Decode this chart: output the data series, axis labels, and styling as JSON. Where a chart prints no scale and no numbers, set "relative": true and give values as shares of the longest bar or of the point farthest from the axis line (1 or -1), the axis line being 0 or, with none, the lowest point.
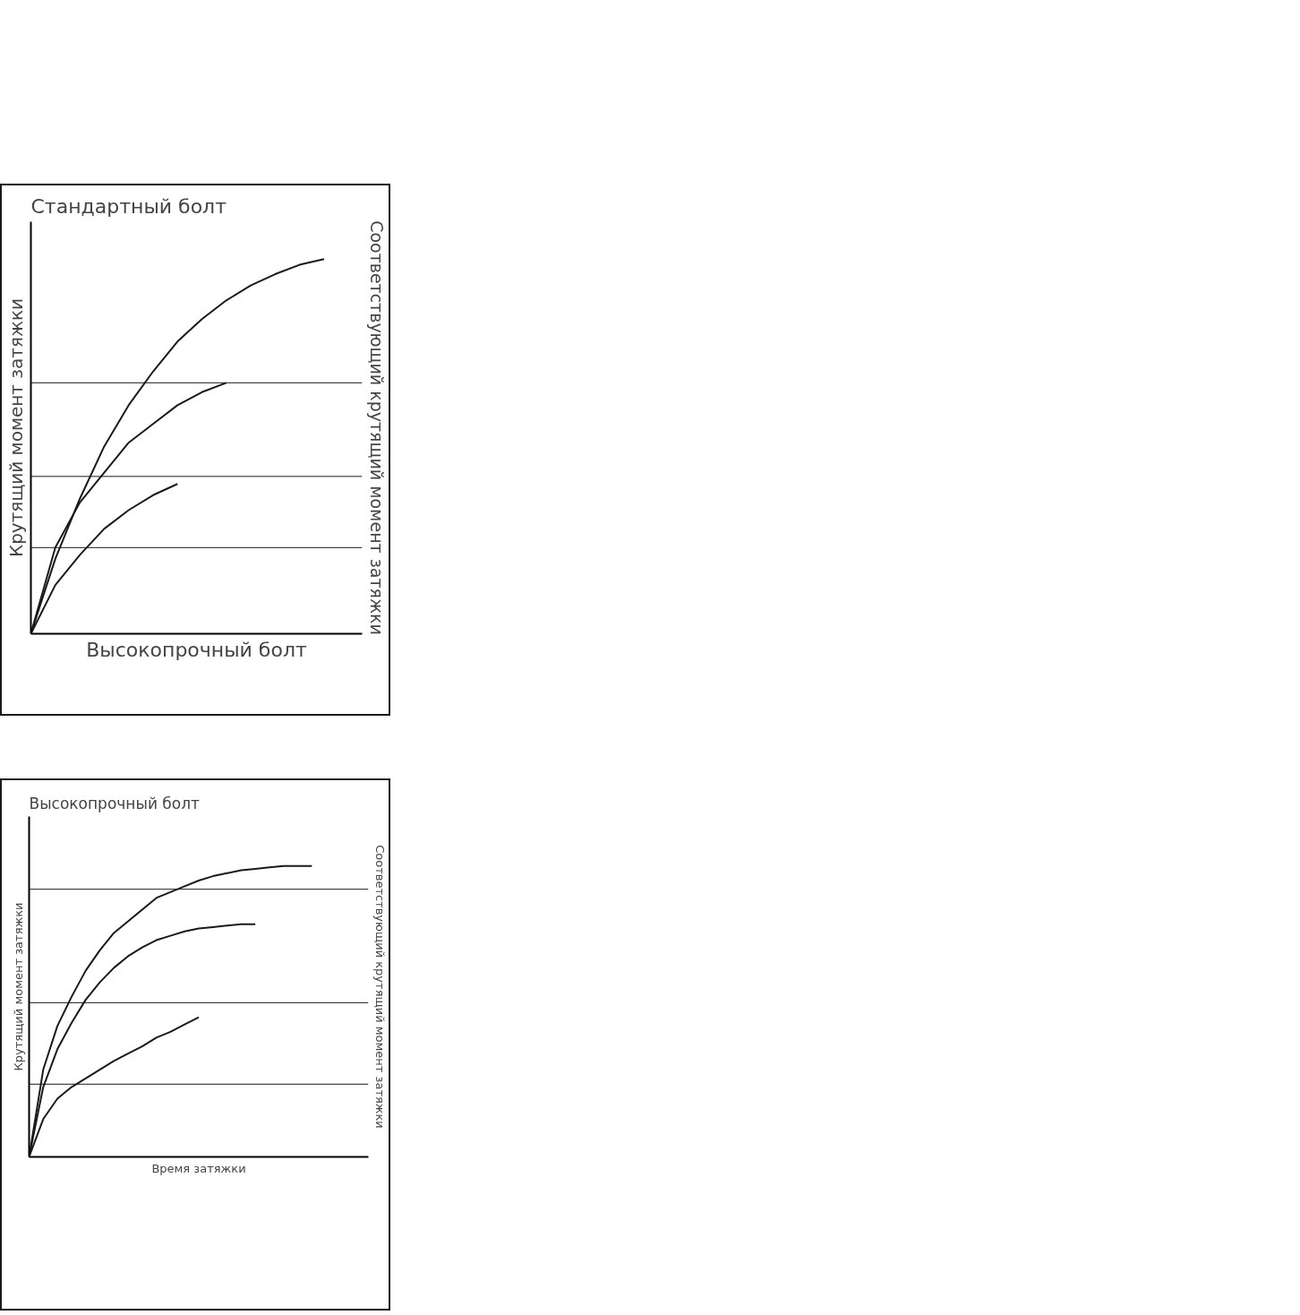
{
  "chart_data": [
    {
      "type": "line",
      "title": "Стандартный болт",
      "xlabel": "Высокопрочный болт",
      "ylabel": "Крутящий момент затяжки",
      "y2label": "Соответствующий крутящий момент затяжки",
      "relative": true,
      "categories": [
        null,
        null,
        null,
        null,
        null,
        null,
        null,
        null,
        null,
        null,
        null,
        null,
        null
      ],
      "series": [
        {
          "color": "#1a1a1a",
          "values": [
            0,
            0.2,
            0.36,
            0.5,
            0.61,
            0.7,
            0.78,
            0.84,
            0.89,
            0.93,
            0.96,
            0.985,
            1.0
          ]
        },
        {
          "color": "#1a1a1a",
          "values": [
            0,
            0.23,
            0.35,
            0.43,
            0.51,
            0.56,
            0.61,
            0.645,
            0.67,
            null,
            null,
            null,
            null
          ]
        },
        {
          "color": "#1a1a1a",
          "values": [
            0,
            0.13,
            0.21,
            0.28,
            0.33,
            0.37,
            0.4,
            null,
            null,
            null,
            null,
            null,
            null
          ]
        }
      ],
      "ref_lines": [
        {
          "axis": "y",
          "value": 0.67,
          "color": "#1a1a1a"
        },
        {
          "axis": "y",
          "value": 0.42,
          "color": "#1a1a1a"
        },
        {
          "axis": "y",
          "value": 0.23,
          "color": "#1a1a1a"
        }
      ]
    },
    {
      "type": "line",
      "title": "Высокопрочный болт",
      "xlabel": "Время затяжки",
      "ylabel": "Крутящий момент затяжки",
      "y2label": "Соответствующий крутящий момент затяжки",
      "relative": true,
      "categories": [
        null,
        null,
        null,
        null,
        null,
        null,
        null,
        null,
        null,
        null,
        null,
        null,
        null,
        null,
        null,
        null,
        null,
        null,
        null,
        null,
        null
      ],
      "series": [
        {
          "color": "#1a1a1a",
          "values": [
            0,
            0.3,
            0.45,
            0.55,
            0.64,
            0.71,
            0.77,
            0.81,
            0.85,
            0.89,
            0.91,
            0.93,
            0.95,
            0.965,
            0.975,
            0.985,
            0.99,
            0.995,
            1.0,
            1.0,
            1.0
          ]
        },
        {
          "color": "#1a1a1a",
          "values": [
            0,
            0.24,
            0.37,
            0.46,
            0.54,
            0.6,
            0.65,
            0.69,
            0.72,
            0.745,
            0.76,
            0.775,
            0.785,
            0.79,
            0.795,
            0.8,
            0.8,
            null,
            null,
            null,
            null
          ]
        },
        {
          "color": "#1a1a1a",
          "values": [
            0,
            0.13,
            0.2,
            0.24,
            0.27,
            0.3,
            0.33,
            0.355,
            0.38,
            0.41,
            0.43,
            0.455,
            0.48,
            null,
            null,
            null,
            null,
            null,
            null,
            null,
            null
          ]
        }
      ],
      "ref_lines": [
        {
          "axis": "y",
          "value": 0.92,
          "color": "#1a1a1a"
        },
        {
          "axis": "y",
          "value": 0.53,
          "color": "#1a1a1a"
        },
        {
          "axis": "y",
          "value": 0.25,
          "color": "#1a1a1a"
        }
      ]
    }
  ]
}
